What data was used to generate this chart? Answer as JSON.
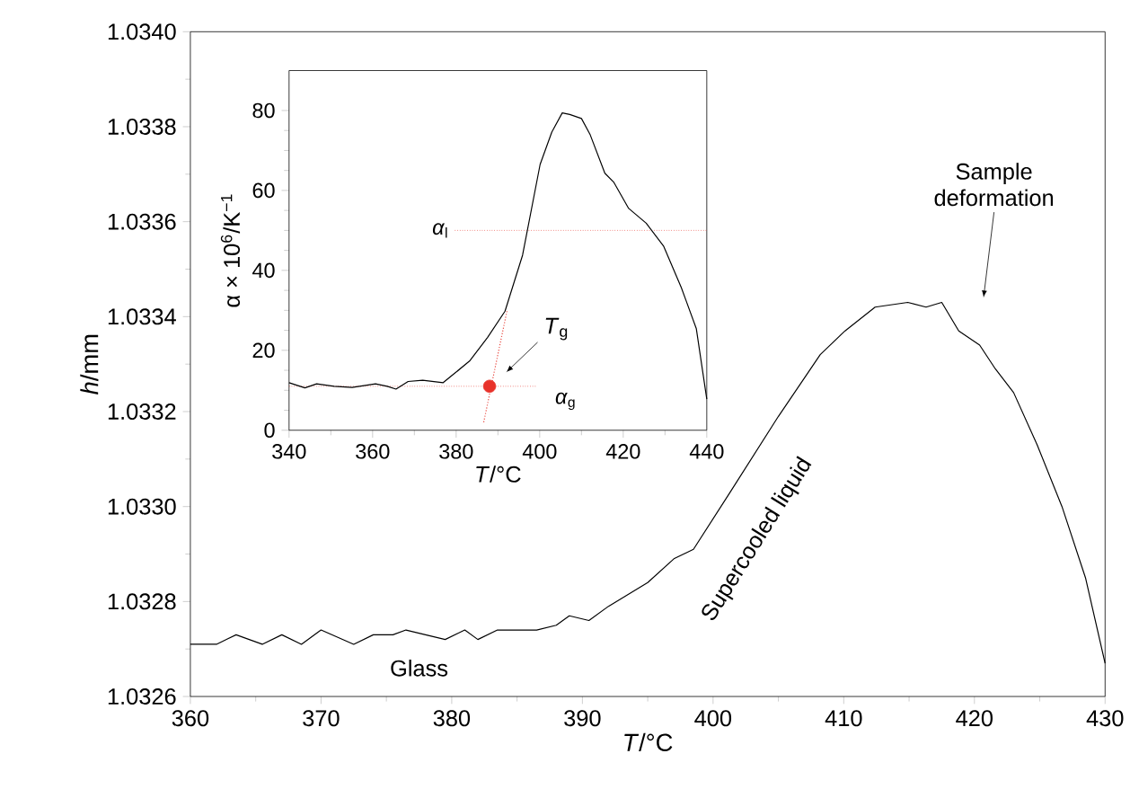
{
  "chart_data": [
    {
      "type": "line",
      "xlabel": "*T*/°C",
      "ylabel": "*h*/mm",
      "x": [
        360,
        362,
        363.5,
        365.5,
        367,
        368.5,
        370,
        372.5,
        374,
        375.5,
        376.5,
        379.5,
        381,
        382,
        383.5,
        386.5,
        388,
        389,
        390.5,
        392,
        395,
        397,
        398.5,
        401.3,
        405,
        408.2,
        410.1,
        412.4,
        414.9,
        416.3,
        417.5,
        418.8,
        420.4,
        421.6,
        423,
        424.8,
        426.7,
        428.5,
        430
      ],
      "values": [
        1.03271,
        1.03271,
        1.03273,
        1.03271,
        1.03273,
        1.03271,
        1.03274,
        1.03271,
        1.03273,
        1.03273,
        1.03274,
        1.03272,
        1.03274,
        1.03272,
        1.03274,
        1.03274,
        1.03275,
        1.03277,
        1.03276,
        1.03279,
        1.03284,
        1.03289,
        1.03291,
        1.03303,
        1.03319,
        1.03332,
        1.03337,
        1.03342,
        1.03343,
        1.03342,
        1.03343,
        1.03337,
        1.03334,
        1.03329,
        1.03324,
        1.03313,
        1.033,
        1.03285,
        1.03267
      ],
      "color": "#000000",
      "xlim": [
        360,
        430
      ],
      "xticks": [
        360,
        370,
        380,
        390,
        400,
        410,
        420,
        430
      ],
      "ylim": [
        1.0326,
        1.034
      ],
      "yticks": [
        1.0326,
        1.0328,
        {
          "value": 1.033,
          "label": "1.0330"
        },
        1.0332,
        1.0334,
        1.0336,
        1.0338,
        {
          "value": 1.034,
          "label": "1.0340"
        }
      ],
      "annotations": [
        "Glass",
        "Supercooled liquid",
        "Sample deformation"
      ]
    },
    {
      "type": "line",
      "xlabel": "*T*/°C",
      "ylabel": "α × 10$^{6}$/K$^{−1}$",
      "series": [
        {
          "x": [
            340,
            343.8,
            346.6,
            350.8,
            355.1,
            360.7,
            363.5,
            365.6,
            368.5,
            372,
            376.9,
            379,
            383.2,
            387.5,
            391.7,
            395.9,
            400.1,
            402.9,
            405.4,
            407.2,
            410,
            412.1,
            415.6,
            417.7,
            421.3,
            425.5,
            429.7,
            433.9,
            437.5,
            440
          ],
          "values": [
            11.9,
            10.6,
            11.6,
            11,
            10.7,
            11.6,
            11,
            10.3,
            12.2,
            12.5,
            11.9,
            13.7,
            17.3,
            23.2,
            29.8,
            43.8,
            66.5,
            74.6,
            79.4,
            79,
            78,
            73.9,
            64.3,
            62.1,
            55.5,
            51.8,
            46,
            35.7,
            25.4,
            7.8
          ],
          "color": "#000000"
        },
        {
          "x": [
            386.6,
            392.2
          ],
          "values": [
            2,
            30
          ],
          "color": "#e8453c",
          "line_style": "dotted"
        },
        {
          "type": "scatter",
          "x": [
            388
          ],
          "values": [
            11
          ],
          "color": "#e8322a"
        }
      ],
      "xlim": [
        340,
        440
      ],
      "xticks": [
        340,
        360,
        380,
        400,
        420,
        440
      ],
      "ylim": [
        0,
        90
      ],
      "yticks": [
        0,
        20,
        40,
        60,
        80
      ],
      "ref_lines": [
        {
          "axis": "y",
          "value": 50,
          "label": "*α*$_{l}$",
          "color": "#e8453c",
          "line_style": "dotted"
        },
        {
          "axis": "y",
          "value": 11,
          "label": "*α*$_{g}$",
          "color": "#e8453c",
          "line_style": "dotted"
        }
      ],
      "annotations": [
        "*T*$_{g}$"
      ]
    }
  ]
}
